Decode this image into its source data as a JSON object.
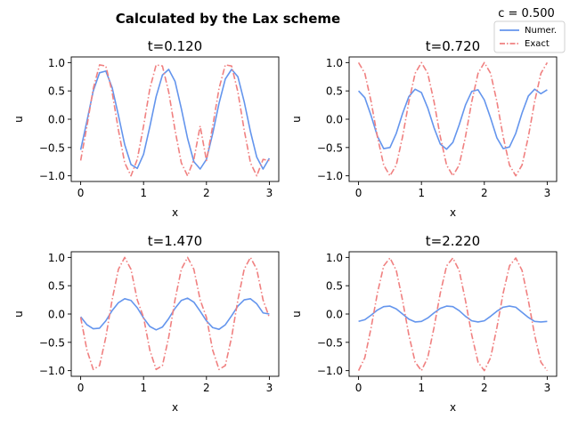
{
  "figure": {
    "title": "Calculated by the Lax scheme",
    "param_label": "c = 0.500"
  },
  "legend": {
    "numerical_label": "Numer.",
    "exact_label": "Exact"
  },
  "colors": {
    "numerical": "#6495ed",
    "exact": "#f08080"
  },
  "chart_data": [
    {
      "type": "line",
      "title": "t=0.120",
      "xlabel": "x",
      "ylabel": "u",
      "xlim": [
        -0.15,
        3.15
      ],
      "ylim": [
        -1.1,
        1.1
      ],
      "xticks": [
        0,
        1,
        2,
        3
      ],
      "yticks": [
        -1.0,
        -0.5,
        0.0,
        0.5,
        1.0
      ],
      "series": [
        {
          "name": "Numer.",
          "x": [
            0.0,
            0.1,
            0.2,
            0.3,
            0.4,
            0.5,
            0.6,
            0.7,
            0.8,
            0.9,
            1.0,
            1.1,
            1.2,
            1.3,
            1.4,
            1.5,
            1.6,
            1.7,
            1.8,
            1.9,
            2.0,
            2.1,
            2.2,
            2.3,
            2.4,
            2.5,
            2.6,
            2.7,
            2.8,
            2.9,
            3.0
          ],
          "y": [
            -0.54,
            -0.03,
            0.5,
            0.82,
            0.85,
            0.56,
            0.07,
            -0.45,
            -0.8,
            -0.87,
            -0.62,
            -0.13,
            0.4,
            0.78,
            0.88,
            0.67,
            0.19,
            -0.34,
            -0.75,
            -0.88,
            -0.71,
            -0.25,
            0.28,
            0.71,
            0.88,
            0.75,
            0.31,
            -0.22,
            -0.67,
            -0.88,
            -0.69
          ]
        },
        {
          "name": "Exact",
          "x": [
            0.0,
            0.1,
            0.2,
            0.3,
            0.4,
            0.5,
            0.6,
            0.7,
            0.8,
            0.9,
            1.0,
            1.1,
            1.2,
            1.3,
            1.4,
            1.5,
            1.6,
            1.7,
            1.8,
            1.9,
            2.0,
            2.1,
            2.2,
            2.3,
            2.4,
            2.5,
            2.6,
            2.7,
            2.8,
            2.9,
            3.0
          ],
          "y": [
            -0.73,
            -0.12,
            0.54,
            0.96,
            0.94,
            0.48,
            -0.19,
            -0.77,
            -1.0,
            -0.71,
            -0.12,
            0.54,
            0.96,
            0.94,
            0.48,
            -0.19,
            -0.77,
            -1.0,
            -0.71,
            -0.12,
            -0.73,
            -0.12,
            0.54,
            0.96,
            0.94,
            0.48,
            -0.19,
            -0.77,
            -1.0,
            -0.71,
            -0.73
          ]
        }
      ]
    },
    {
      "type": "line",
      "title": "t=0.720",
      "xlabel": "x",
      "ylabel": "u",
      "xlim": [
        -0.15,
        3.15
      ],
      "ylim": [
        -1.1,
        1.1
      ],
      "xticks": [
        0,
        1,
        2,
        3
      ],
      "yticks": [
        -1.0,
        -0.5,
        0.0,
        0.5,
        1.0
      ],
      "series": [
        {
          "name": "Numer.",
          "x": [
            0.0,
            0.1,
            0.2,
            0.3,
            0.4,
            0.5,
            0.6,
            0.7,
            0.8,
            0.9,
            1.0,
            1.1,
            1.2,
            1.3,
            1.4,
            1.5,
            1.6,
            1.7,
            1.8,
            1.9,
            2.0,
            2.1,
            2.2,
            2.3,
            2.4,
            2.5,
            2.6,
            2.7,
            2.8,
            2.9,
            3.0
          ],
          "y": [
            0.5,
            0.38,
            0.06,
            -0.3,
            -0.52,
            -0.5,
            -0.25,
            0.1,
            0.4,
            0.53,
            0.47,
            0.2,
            -0.15,
            -0.44,
            -0.53,
            -0.41,
            -0.1,
            0.25,
            0.49,
            0.52,
            0.34,
            0.02,
            -0.33,
            -0.52,
            -0.49,
            -0.25,
            0.11,
            0.41,
            0.53,
            0.45,
            0.52
          ]
        },
        {
          "name": "Exact",
          "x": [
            0.0,
            0.1,
            0.2,
            0.3,
            0.4,
            0.5,
            0.6,
            0.7,
            0.8,
            0.9,
            1.0,
            1.1,
            1.2,
            1.3,
            1.4,
            1.5,
            1.6,
            1.7,
            1.8,
            1.9,
            2.0,
            2.1,
            2.2,
            2.3,
            2.4,
            2.5,
            2.6,
            2.7,
            2.8,
            2.9,
            3.0
          ],
          "y": [
            1.0,
            0.81,
            0.31,
            -0.31,
            -0.81,
            -1.0,
            -0.81,
            -0.31,
            0.31,
            0.81,
            1.0,
            0.81,
            0.31,
            -0.31,
            -0.81,
            -1.0,
            -0.81,
            -0.31,
            0.31,
            0.81,
            1.0,
            0.81,
            0.31,
            -0.31,
            -0.81,
            -1.0,
            -0.81,
            -0.31,
            0.31,
            0.81,
            1.0
          ]
        }
      ]
    },
    {
      "type": "line",
      "title": "t=1.470",
      "xlabel": "x",
      "ylabel": "u",
      "xlim": [
        -0.15,
        3.15
      ],
      "ylim": [
        -1.1,
        1.1
      ],
      "xticks": [
        0,
        1,
        2,
        3
      ],
      "yticks": [
        -1.0,
        -0.5,
        0.0,
        0.5,
        1.0
      ],
      "series": [
        {
          "name": "Numer.",
          "x": [
            0.0,
            0.1,
            0.2,
            0.3,
            0.4,
            0.5,
            0.6,
            0.7,
            0.8,
            0.9,
            1.0,
            1.1,
            1.2,
            1.3,
            1.4,
            1.5,
            1.6,
            1.7,
            1.8,
            1.9,
            2.0,
            2.1,
            2.2,
            2.3,
            2.4,
            2.5,
            2.6,
            2.7,
            2.8,
            2.9,
            3.0
          ],
          "y": [
            -0.05,
            -0.19,
            -0.26,
            -0.25,
            -0.12,
            0.06,
            0.2,
            0.27,
            0.24,
            0.11,
            -0.07,
            -0.22,
            -0.28,
            -0.23,
            -0.08,
            0.1,
            0.24,
            0.28,
            0.21,
            0.05,
            -0.12,
            -0.24,
            -0.27,
            -0.19,
            -0.03,
            0.14,
            0.25,
            0.27,
            0.18,
            0.02,
            0.0
          ]
        },
        {
          "name": "Exact",
          "x": [
            0.0,
            0.1,
            0.2,
            0.3,
            0.4,
            0.5,
            0.6,
            0.7,
            0.8,
            0.9,
            1.0,
            1.1,
            1.2,
            1.3,
            1.4,
            1.5,
            1.6,
            1.7,
            1.8,
            1.9,
            2.0,
            2.1,
            2.2,
            2.3,
            2.4,
            2.5,
            2.6,
            2.7,
            2.8,
            2.9,
            3.0
          ],
          "y": [
            -0.06,
            -0.64,
            -0.98,
            -0.91,
            -0.41,
            0.25,
            0.79,
            1.0,
            0.79,
            0.25,
            -0.06,
            -0.64,
            -0.98,
            -0.91,
            -0.41,
            0.25,
            0.79,
            1.0,
            0.79,
            0.25,
            -0.06,
            -0.64,
            -0.98,
            -0.91,
            -0.41,
            0.25,
            0.79,
            1.0,
            0.79,
            0.25,
            -0.06
          ]
        }
      ]
    },
    {
      "type": "line",
      "title": "t=2.220",
      "xlabel": "x",
      "ylabel": "u",
      "xlim": [
        -0.15,
        3.15
      ],
      "ylim": [
        -1.1,
        1.1
      ],
      "xticks": [
        0,
        1,
        2,
        3
      ],
      "yticks": [
        -1.0,
        -0.5,
        0.0,
        0.5,
        1.0
      ],
      "series": [
        {
          "name": "Numer.",
          "x": [
            0.0,
            0.1,
            0.2,
            0.3,
            0.4,
            0.5,
            0.6,
            0.7,
            0.8,
            0.9,
            1.0,
            1.1,
            1.2,
            1.3,
            1.4,
            1.5,
            1.6,
            1.7,
            1.8,
            1.9,
            2.0,
            2.1,
            2.2,
            2.3,
            2.4,
            2.5,
            2.6,
            2.7,
            2.8,
            2.9,
            3.0
          ],
          "y": [
            -0.13,
            -0.1,
            -0.02,
            0.07,
            0.13,
            0.14,
            0.09,
            0.0,
            -0.09,
            -0.14,
            -0.13,
            -0.07,
            0.02,
            0.1,
            0.14,
            0.13,
            0.06,
            -0.04,
            -0.12,
            -0.14,
            -0.12,
            -0.04,
            0.05,
            0.12,
            0.14,
            0.12,
            0.03,
            -0.06,
            -0.13,
            -0.14,
            -0.13
          ]
        },
        {
          "name": "Exact",
          "x": [
            0.0,
            0.1,
            0.2,
            0.3,
            0.4,
            0.5,
            0.6,
            0.7,
            0.8,
            0.9,
            1.0,
            1.1,
            1.2,
            1.3,
            1.4,
            1.5,
            1.6,
            1.7,
            1.8,
            1.9,
            2.0,
            2.1,
            2.2,
            2.3,
            2.4,
            2.5,
            2.6,
            2.7,
            2.8,
            2.9,
            3.0
          ],
          "y": [
            -1.0,
            -0.77,
            -0.24,
            0.37,
            0.85,
            0.99,
            0.77,
            0.24,
            -0.37,
            -0.85,
            -1.0,
            -0.77,
            -0.24,
            0.37,
            0.85,
            0.99,
            0.77,
            0.24,
            -0.37,
            -0.85,
            -1.0,
            -0.77,
            -0.24,
            0.37,
            0.85,
            0.99,
            0.77,
            0.24,
            -0.37,
            -0.85,
            -1.0
          ]
        }
      ]
    }
  ]
}
